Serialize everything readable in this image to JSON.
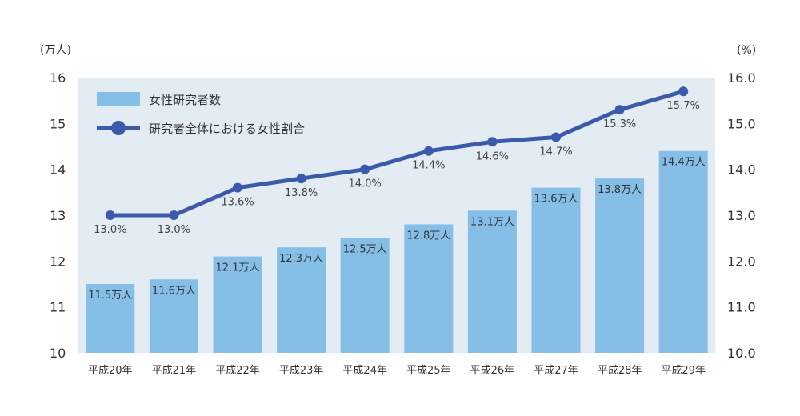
{
  "chart_data": {
    "type": "bar",
    "categories": [
      "平成20年",
      "平成21年",
      "平成22年",
      "平成23年",
      "平成24年",
      "平成25年",
      "平成26年",
      "平成27年",
      "平成28年",
      "平成29年"
    ],
    "series": [
      {
        "name": "女性研究者数",
        "type": "bar",
        "axis": "left",
        "values": [
          11.5,
          11.6,
          12.1,
          12.3,
          12.5,
          12.8,
          13.1,
          13.6,
          13.8,
          14.4
        ],
        "labels": [
          "11.5万人",
          "11.6万人",
          "12.1万人",
          "12.3万人",
          "12.5万人",
          "12.8万人",
          "13.1万人",
          "13.6万人",
          "13.8万人",
          "14.4万人"
        ],
        "color": "#85bfe7"
      },
      {
        "name": "研究者全体における女性割合",
        "type": "line",
        "axis": "right",
        "values": [
          13.0,
          13.0,
          13.6,
          13.8,
          14.0,
          14.4,
          14.6,
          14.7,
          15.3,
          15.7
        ],
        "labels": [
          "13.0%",
          "13.0%",
          "13.6%",
          "13.8%",
          "14.0%",
          "14.4%",
          "14.6%",
          "14.7%",
          "15.3%",
          "15.7%"
        ],
        "color": "#3b5aab"
      }
    ],
    "y_left": {
      "unit": "(万人)",
      "ylim": [
        10,
        16
      ],
      "ticks": [
        "10",
        "11",
        "12",
        "13",
        "14",
        "15",
        "16"
      ]
    },
    "y_right": {
      "unit": "(%)",
      "ylim": [
        10,
        16
      ],
      "ticks": [
        "10.0",
        "11.0",
        "12.0",
        "13.0",
        "14.0",
        "15.0",
        "16.0"
      ]
    },
    "legend_position": "top-left",
    "plot_background": "#e3ebf3",
    "grid": false
  }
}
